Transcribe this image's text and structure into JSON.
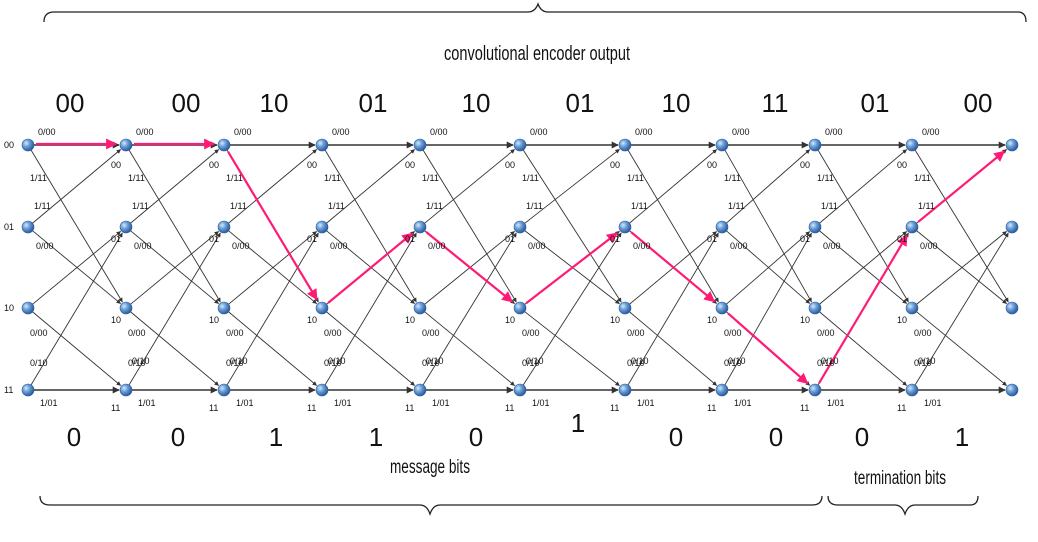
{
  "title": "convolutional encoder output",
  "message_label": "message bits",
  "termination_label": "termination bits",
  "state_labels": [
    "00",
    "01",
    "10",
    "11"
  ],
  "output_pairs": [
    "00",
    "00",
    "10",
    "01",
    "10",
    "01",
    "10",
    "11",
    "01",
    "00"
  ],
  "input_bits": [
    "0",
    "0",
    "1",
    "1",
    "0",
    "1",
    "0",
    "0",
    "0",
    "1"
  ],
  "branch_labels": {
    "s00_upper": "0/00",
    "s00_lower": "1/11",
    "s01_upper": "1/11",
    "s01_lower": "0/00",
    "s10_upper": "0/00",
    "s10_lower": "0/10",
    "s11_upper": "0/10",
    "s11_lower": "1/01"
  },
  "path_states": [
    "00",
    "00",
    "00",
    "10",
    "01",
    "10",
    "01",
    "10",
    "11",
    "01",
    "00"
  ],
  "colors": {
    "node": "#4f86c6",
    "node_highlight": "#a9cbee",
    "edge": "#333333",
    "path": "#ff1a75",
    "text": "#111111"
  }
}
